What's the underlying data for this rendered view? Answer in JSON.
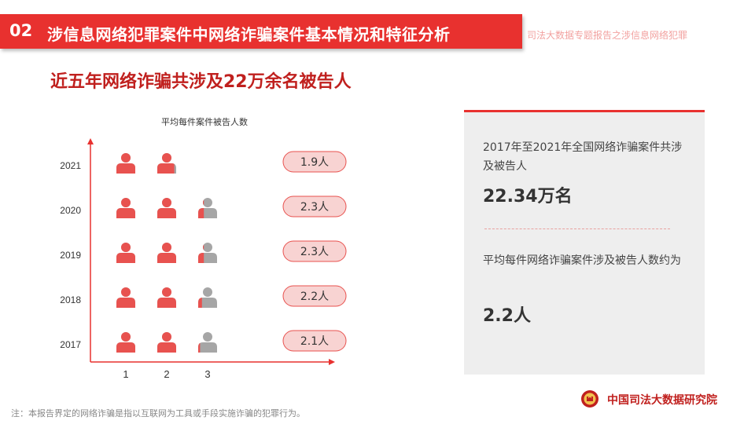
{
  "header": {
    "section_number": "02",
    "title": "涉信息网络犯罪案件中网络诈骗案件基本情况和特征分析",
    "subtitle": "司法大数据专题报告之涉信息网络犯罪"
  },
  "headline": "近五年网络诈骗共涉及22万余名被告人",
  "chart_data": {
    "type": "pictogram",
    "title": "平均每件案件被告人数",
    "x_ticks": [
      "1",
      "2",
      "3"
    ],
    "icon": "person-icon",
    "rows": [
      {
        "year": "2021",
        "value": 1.9,
        "label": "1.9人"
      },
      {
        "year": "2020",
        "value": 2.3,
        "label": "2.3人"
      },
      {
        "year": "2019",
        "value": 2.3,
        "label": "2.3人"
      },
      {
        "year": "2018",
        "value": 2.2,
        "label": "2.2人"
      },
      {
        "year": "2017",
        "value": 2.1,
        "label": "2.1人"
      }
    ],
    "colors": {
      "filled": "#e8524f",
      "empty": "#a6a6a6",
      "axis": "#e8312f",
      "pill_fill": "#f8d3d2",
      "pill_border": "#e8524f"
    }
  },
  "panel": {
    "text1": "2017年至2021年全国网络诈骗案件共涉及被告人",
    "value1": "22.34万名",
    "text2": "平均每件网络诈骗案件涉及被告人数约为",
    "value2": "2.2人"
  },
  "footnote": "注：本报告界定的网络诈骗是指以互联网为工具或手段实施诈骗的犯罪行为。",
  "logo": {
    "text": "中国司法大数据研究院",
    "icon": "court-emblem-icon"
  }
}
